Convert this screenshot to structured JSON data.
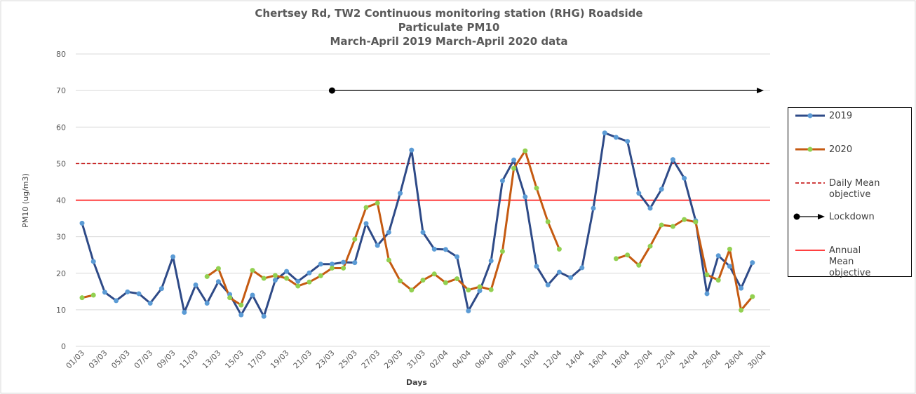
{
  "chart_data": {
    "type": "line",
    "title": [
      "Chertsey Rd, TW2 Continuous monitoring station (RHG) Roadside",
      "Particulate PM10",
      "March-April 2019 March-April 2020 data"
    ],
    "x_label": "Days",
    "y_label": "PM10 (ug/m3)",
    "categories": [
      "01/03",
      null,
      "03/03",
      null,
      "05/03",
      null,
      "07/03",
      null,
      "09/03",
      null,
      "11/03",
      null,
      "13/03",
      null,
      "15/03",
      null,
      "17/03",
      null,
      "19/03",
      null,
      "21/03",
      null,
      "23/03",
      null,
      "25/03",
      null,
      "27/03",
      null,
      "29/03",
      null,
      "31/03",
      null,
      "02/04",
      null,
      "04/04",
      null,
      "06/04",
      null,
      "08/04",
      null,
      "10/04",
      null,
      "12/04",
      null,
      "14/04",
      null,
      "16/04",
      null,
      "18/04",
      null,
      "20/04",
      null,
      "22/04",
      null,
      "24/04",
      null,
      "26/04",
      null,
      "28/04",
      null,
      "30/04"
    ],
    "series": [
      {
        "name": "2019",
        "color": "#2e4a87",
        "marker_color": "#5b9bd5",
        "values": [
          33.7,
          23.2,
          14.8,
          12.5,
          14.9,
          14.4,
          11.8,
          15.8,
          24.5,
          9.3,
          16.8,
          11.8,
          17.7,
          14.2,
          8.6,
          14.0,
          8.2,
          18.1,
          20.5,
          17.8,
          20.1,
          22.5,
          22.5,
          23.0,
          22.9,
          33.6,
          27.6,
          31.2,
          41.9,
          53.7,
          31.2,
          26.6,
          26.5,
          24.5,
          9.7,
          15.2,
          23.4,
          45.3,
          51.0,
          40.9,
          21.9,
          16.8,
          20.3,
          18.8,
          21.5,
          37.8,
          58.4,
          57.2,
          56.1,
          41.9,
          37.8,
          43.0,
          51.1,
          46.0,
          34.4,
          14.4,
          24.8,
          21.9,
          15.9,
          22.9,
          null
        ]
      },
      {
        "name": "2020",
        "color": "#c55a11",
        "marker_color": "#92d050",
        "values": [
          13.3,
          14.0,
          null,
          null,
          null,
          null,
          null,
          null,
          null,
          null,
          null,
          19.1,
          21.3,
          13.3,
          11.3,
          20.8,
          18.6,
          19.4,
          18.6,
          16.5,
          17.6,
          19.3,
          21.4,
          21.4,
          29.3,
          38.0,
          39.2,
          23.6,
          17.9,
          15.4,
          18.1,
          19.8,
          17.4,
          18.5,
          15.4,
          16.3,
          15.5,
          26.0,
          48.7,
          53.5,
          43.3,
          34.1,
          26.6,
          null,
          null,
          null,
          null,
          24.0,
          25.0,
          22.2,
          27.4,
          33.2,
          32.8,
          34.7,
          34.0,
          19.6,
          18.1,
          26.6,
          9.9,
          13.6,
          null
        ]
      }
    ],
    "reference_lines": [
      {
        "name": "Daily Mean objective",
        "value": 50,
        "color": "#c00000",
        "dashed": true
      },
      {
        "name": "Annual Mean objective",
        "value": 40,
        "color": "#ff0000",
        "dashed": false
      }
    ],
    "lockdown": {
      "name": "Lockdown",
      "value": 70,
      "from": "23/03",
      "to": "30/04",
      "color": "#000000"
    },
    "ylim": [
      0,
      80
    ],
    "yticks": [
      0,
      10,
      20,
      30,
      40,
      50,
      60,
      70,
      80
    ],
    "grid": true
  }
}
